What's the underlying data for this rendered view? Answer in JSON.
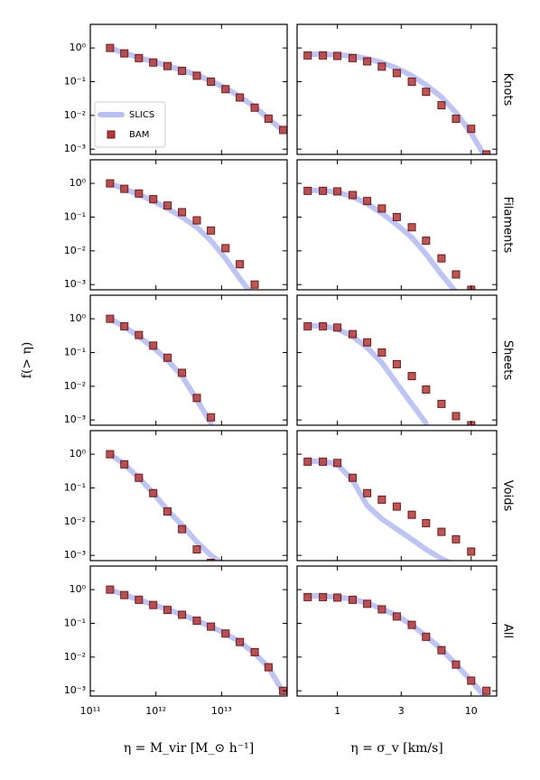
{
  "chart_data": [
    {
      "type": "line",
      "x": [
        200000000000.0,
        330000000000.0,
        550000000000.0,
        910000000000.0,
        1500000000000.0,
        2500000000000.0,
        4200000000000.0,
        6900000000000.0,
        11500000000000.0,
        19000000000000.0,
        32000000000000.0,
        52000000000000.0,
        87000000000000.0
      ],
      "series": [
        {
          "name": "SLICS",
          "style": "line",
          "color": "#b8bff2",
          "values": [
            1,
            0.7,
            0.52,
            0.39,
            0.3,
            0.22,
            0.16,
            0.105,
            0.065,
            0.036,
            0.018,
            0.008,
            0.0035
          ]
        },
        {
          "name": "BAM",
          "style": "markers",
          "color": "#b03a3a",
          "values": [
            1,
            0.69,
            0.5,
            0.37,
            0.29,
            0.21,
            0.15,
            0.1,
            0.06,
            0.034,
            0.017,
            0.008,
            0.0037
          ]
        }
      ],
      "legend": "lower left",
      "log_x": true,
      "log_y": true,
      "xlim": [
        100000000000.0,
        100000000000000.0
      ],
      "xticks": [
        {
          "value": 100000000000.0,
          "label": "10¹¹"
        },
        {
          "value": 1000000000000.0,
          "label": "10¹²"
        },
        {
          "value": 10000000000000.0,
          "label": "10¹³"
        }
      ],
      "ylim": [
        0.0007,
        5
      ],
      "yticks": [
        {
          "value": 1,
          "label": "10⁰"
        },
        {
          "value": 0.1,
          "label": "10⁻¹"
        },
        {
          "value": 0.01,
          "label": "10⁻²"
        },
        {
          "value": 0.001,
          "label": "10⁻³"
        }
      ]
    },
    {
      "type": "line",
      "title": "Knots",
      "x": [
        0.6,
        0.78,
        1,
        1.3,
        1.67,
        2.15,
        2.78,
        3.6,
        4.6,
        6,
        7.7,
        10,
        13
      ],
      "series": [
        {
          "style": "line",
          "color": "#b8bff2",
          "values": [
            0.65,
            0.65,
            0.63,
            0.57,
            0.48,
            0.37,
            0.25,
            0.15,
            0.08,
            0.035,
            0.012,
            0.003,
            0.0005
          ]
        },
        {
          "style": "markers",
          "color": "#b03a3a",
          "values": [
            0.6,
            0.6,
            0.58,
            0.5,
            0.4,
            0.28,
            0.18,
            0.1,
            0.05,
            0.02,
            0.008,
            0.004,
            0.0007
          ]
        }
      ],
      "log_x": true,
      "log_y": true,
      "xlim": [
        0.5,
        15.5
      ],
      "xticks": [
        1,
        3,
        10
      ],
      "ylim": [
        0.0007,
        5
      ],
      "yticks": [
        {
          "value": 1,
          "label": "10⁰"
        },
        {
          "value": 0.1,
          "label": "10⁻¹"
        },
        {
          "value": 0.01,
          "label": "10⁻²"
        },
        {
          "value": 0.001,
          "label": "10⁻³"
        }
      ]
    },
    {
      "type": "line",
      "x": [
        200000000000.0,
        330000000000.0,
        550000000000.0,
        910000000000.0,
        1500000000000.0,
        2500000000000.0,
        4200000000000.0,
        6900000000000.0,
        11500000000000.0,
        19000000000000.0,
        32000000000000.0,
        52000000000000.0,
        87000000000000.0
      ],
      "series": [
        {
          "style": "line",
          "color": "#b8bff2",
          "values": [
            1,
            0.68,
            0.47,
            0.3,
            0.18,
            0.1,
            0.05,
            0.02,
            0.006,
            0.0015,
            0.0004,
            null,
            null
          ]
        },
        {
          "style": "markers",
          "color": "#b03a3a",
          "values": [
            1,
            0.69,
            0.5,
            0.34,
            0.22,
            0.14,
            0.08,
            0.04,
            0.012,
            0.004,
            0.001,
            null,
            null
          ]
        }
      ],
      "log_x": true,
      "log_y": true,
      "xlim": [
        100000000000.0,
        100000000000000.0
      ],
      "xticks": [
        {
          "value": 100000000000.0,
          "label": "10¹¹"
        },
        {
          "value": 1000000000000.0,
          "label": "10¹²"
        },
        {
          "value": 10000000000000.0,
          "label": "10¹³"
        }
      ],
      "ylim": [
        0.0007,
        5
      ],
      "yticks": [
        {
          "value": 1,
          "label": "10⁰"
        },
        {
          "value": 0.1,
          "label": "10⁻¹"
        },
        {
          "value": 0.01,
          "label": "10⁻²"
        },
        {
          "value": 0.001,
          "label": "10⁻³"
        }
      ]
    },
    {
      "type": "line",
      "title": "Filaments",
      "x": [
        0.6,
        0.78,
        1,
        1.3,
        1.67,
        2.15,
        2.78,
        3.6,
        4.6,
        6,
        7.7,
        10,
        13
      ],
      "series": [
        {
          "style": "line",
          "color": "#b8bff2",
          "values": [
            0.62,
            0.62,
            0.55,
            0.4,
            0.25,
            0.13,
            0.06,
            0.025,
            0.008,
            0.002,
            0.0006,
            null,
            null
          ]
        },
        {
          "style": "markers",
          "color": "#b03a3a",
          "values": [
            0.6,
            0.6,
            0.58,
            0.45,
            0.3,
            0.18,
            0.1,
            0.05,
            0.02,
            0.006,
            0.002,
            0.0007,
            null
          ]
        }
      ],
      "log_x": true,
      "log_y": true,
      "xlim": [
        0.5,
        15.5
      ],
      "xticks": [
        1,
        3,
        10
      ],
      "ylim": [
        0.0007,
        5
      ],
      "yticks": [
        {
          "value": 1,
          "label": "10⁰"
        },
        {
          "value": 0.1,
          "label": "10⁻¹"
        },
        {
          "value": 0.01,
          "label": "10⁻²"
        },
        {
          "value": 0.001,
          "label": "10⁻³"
        }
      ]
    },
    {
      "type": "line",
      "y_label": "f(> η)",
      "x": [
        200000000000.0,
        330000000000.0,
        550000000000.0,
        910000000000.0,
        1500000000000.0,
        2500000000000.0,
        4200000000000.0,
        6900000000000.0,
        11500000000000.0,
        19000000000000.0,
        32000000000000.0,
        52000000000000.0,
        87000000000000.0
      ],
      "series": [
        {
          "style": "line",
          "color": "#b8bff2",
          "values": [
            1,
            0.58,
            0.3,
            0.14,
            0.06,
            0.02,
            0.004,
            0.0008,
            null,
            null,
            null,
            null,
            null
          ]
        },
        {
          "style": "markers",
          "color": "#b03a3a",
          "values": [
            1,
            0.6,
            0.33,
            0.16,
            0.07,
            0.025,
            0.0045,
            0.0012,
            null,
            null,
            null,
            null,
            null
          ]
        }
      ],
      "log_x": true,
      "log_y": true,
      "xlim": [
        100000000000.0,
        100000000000000.0
      ],
      "xticks": [
        {
          "value": 100000000000.0,
          "label": "10¹¹"
        },
        {
          "value": 1000000000000.0,
          "label": "10¹²"
        },
        {
          "value": 10000000000000.0,
          "label": "10¹³"
        }
      ],
      "ylim": [
        0.0007,
        5
      ],
      "yticks": [
        {
          "value": 1,
          "label": "10⁰"
        },
        {
          "value": 0.1,
          "label": "10⁻¹"
        },
        {
          "value": 0.01,
          "label": "10⁻²"
        },
        {
          "value": 0.001,
          "label": "10⁻³"
        }
      ]
    },
    {
      "type": "line",
      "title": "Sheets",
      "x": [
        0.6,
        0.78,
        1,
        1.3,
        1.67,
        2.15,
        2.78,
        3.6,
        4.6,
        6,
        7.7,
        10,
        13
      ],
      "series": [
        {
          "style": "line",
          "color": "#b8bff2",
          "values": [
            0.62,
            0.62,
            0.5,
            0.3,
            0.14,
            0.05,
            0.012,
            0.003,
            0.0008,
            null,
            null,
            null,
            null
          ]
        },
        {
          "style": "markers",
          "color": "#b03a3a",
          "values": [
            0.6,
            0.6,
            0.55,
            0.35,
            0.2,
            0.1,
            0.045,
            0.02,
            0.008,
            0.003,
            0.0013,
            0.0007,
            null
          ]
        }
      ],
      "log_x": true,
      "log_y": true,
      "xlim": [
        0.5,
        15.5
      ],
      "xticks": [
        1,
        3,
        10
      ],
      "ylim": [
        0.0007,
        5
      ],
      "yticks": [
        {
          "value": 1,
          "label": "10⁰"
        },
        {
          "value": 0.1,
          "label": "10⁻¹"
        },
        {
          "value": 0.01,
          "label": "10⁻²"
        },
        {
          "value": 0.001,
          "label": "10⁻³"
        }
      ]
    },
    {
      "type": "line",
      "x": [
        200000000000.0,
        330000000000.0,
        550000000000.0,
        910000000000.0,
        1500000000000.0,
        2500000000000.0,
        4200000000000.0,
        6900000000000.0,
        11500000000000.0,
        19000000000000.0,
        32000000000000.0,
        52000000000000.0,
        87000000000000.0
      ],
      "series": [
        {
          "style": "line",
          "color": "#b8bff2",
          "values": [
            1,
            0.5,
            0.2,
            0.07,
            0.022,
            0.008,
            0.0025,
            0.001,
            0.0005,
            null,
            null,
            null,
            null
          ]
        },
        {
          "style": "markers",
          "color": "#b03a3a",
          "values": [
            1,
            0.5,
            0.2,
            0.07,
            0.02,
            0.006,
            0.0015,
            0.0006,
            null,
            null,
            null,
            null,
            null
          ]
        }
      ],
      "log_x": true,
      "log_y": true,
      "xlim": [
        100000000000.0,
        100000000000000.0
      ],
      "xticks": [
        {
          "value": 100000000000.0,
          "label": "10¹¹"
        },
        {
          "value": 1000000000000.0,
          "label": "10¹²"
        },
        {
          "value": 10000000000000.0,
          "label": "10¹³"
        }
      ],
      "ylim": [
        0.0007,
        5
      ],
      "yticks": [
        {
          "value": 1,
          "label": "10⁰"
        },
        {
          "value": 0.1,
          "label": "10⁻¹"
        },
        {
          "value": 0.01,
          "label": "10⁻²"
        },
        {
          "value": 0.001,
          "label": "10⁻³"
        }
      ]
    },
    {
      "type": "line",
      "title": "Voids",
      "x": [
        0.6,
        0.78,
        1,
        1.3,
        1.67,
        2.15,
        2.78,
        3.6,
        4.6,
        6,
        7.7,
        10,
        13
      ],
      "series": [
        {
          "style": "line",
          "color": "#b8bff2",
          "values": [
            0.62,
            0.62,
            0.5,
            0.17,
            0.03,
            0.012,
            0.006,
            0.003,
            0.0015,
            0.0008,
            0.0005,
            null,
            null
          ]
        },
        {
          "style": "markers",
          "color": "#b03a3a",
          "values": [
            0.6,
            0.6,
            0.55,
            0.2,
            0.07,
            0.045,
            0.028,
            0.016,
            0.009,
            0.005,
            0.003,
            0.0013,
            null
          ]
        }
      ],
      "log_x": true,
      "log_y": true,
      "xlim": [
        0.5,
        15.5
      ],
      "xticks": [
        1,
        3,
        10
      ],
      "ylim": [
        0.0007,
        5
      ],
      "yticks": [
        {
          "value": 1,
          "label": "10⁰"
        },
        {
          "value": 0.1,
          "label": "10⁻¹"
        },
        {
          "value": 0.01,
          "label": "10⁻²"
        },
        {
          "value": 0.001,
          "label": "10⁻³"
        }
      ]
    },
    {
      "type": "line",
      "x_label": "η = M_vir [M_⊙ h⁻¹]",
      "x": [
        200000000000.0,
        330000000000.0,
        550000000000.0,
        910000000000.0,
        1500000000000.0,
        2500000000000.0,
        4200000000000.0,
        6900000000000.0,
        11500000000000.0,
        19000000000000.0,
        32000000000000.0,
        52000000000000.0,
        87000000000000.0
      ],
      "series": [
        {
          "style": "line",
          "color": "#b8bff2",
          "values": [
            1,
            0.7,
            0.5,
            0.36,
            0.26,
            0.18,
            0.12,
            0.08,
            0.05,
            0.028,
            0.013,
            0.005,
            0.0009
          ]
        },
        {
          "style": "markers",
          "color": "#b03a3a",
          "values": [
            1,
            0.69,
            0.5,
            0.35,
            0.25,
            0.18,
            0.12,
            0.08,
            0.05,
            0.028,
            0.014,
            0.005,
            0.001
          ]
        }
      ],
      "log_x": true,
      "log_y": true,
      "xlim": [
        100000000000.0,
        100000000000000.0
      ],
      "xticks": [
        {
          "value": 100000000000.0,
          "label": "10¹¹"
        },
        {
          "value": 1000000000000.0,
          "label": "10¹²"
        },
        {
          "value": 10000000000000.0,
          "label": "10¹³"
        }
      ],
      "ylim": [
        0.0007,
        5
      ],
      "yticks": [
        {
          "value": 1,
          "label": "10⁰"
        },
        {
          "value": 0.1,
          "label": "10⁻¹"
        },
        {
          "value": 0.01,
          "label": "10⁻²"
        },
        {
          "value": 0.001,
          "label": "10⁻³"
        }
      ]
    },
    {
      "type": "line",
      "title": "All",
      "x_label": "η = σ_v [km/s]",
      "x": [
        0.6,
        0.78,
        1,
        1.3,
        1.67,
        2.15,
        2.78,
        3.6,
        4.6,
        6,
        7.7,
        10,
        13
      ],
      "series": [
        {
          "style": "line",
          "color": "#b8bff2",
          "values": [
            0.65,
            0.65,
            0.6,
            0.52,
            0.4,
            0.27,
            0.17,
            0.09,
            0.042,
            0.017,
            0.006,
            0.002,
            0.0006
          ]
        },
        {
          "style": "markers",
          "color": "#b03a3a",
          "values": [
            0.6,
            0.6,
            0.58,
            0.5,
            0.38,
            0.26,
            0.16,
            0.09,
            0.04,
            0.016,
            0.006,
            0.002,
            0.001
          ]
        }
      ],
      "log_x": true,
      "log_y": true,
      "xlim": [
        0.5,
        15.5
      ],
      "xticks": [
        1,
        3,
        10
      ],
      "ylim": [
        0.0007,
        5
      ],
      "yticks": [
        {
          "value": 1,
          "label": "10⁰"
        },
        {
          "value": 0.1,
          "label": "10⁻¹"
        },
        {
          "value": 0.01,
          "label": "10⁻²"
        },
        {
          "value": 0.001,
          "label": "10⁻³"
        }
      ]
    }
  ]
}
